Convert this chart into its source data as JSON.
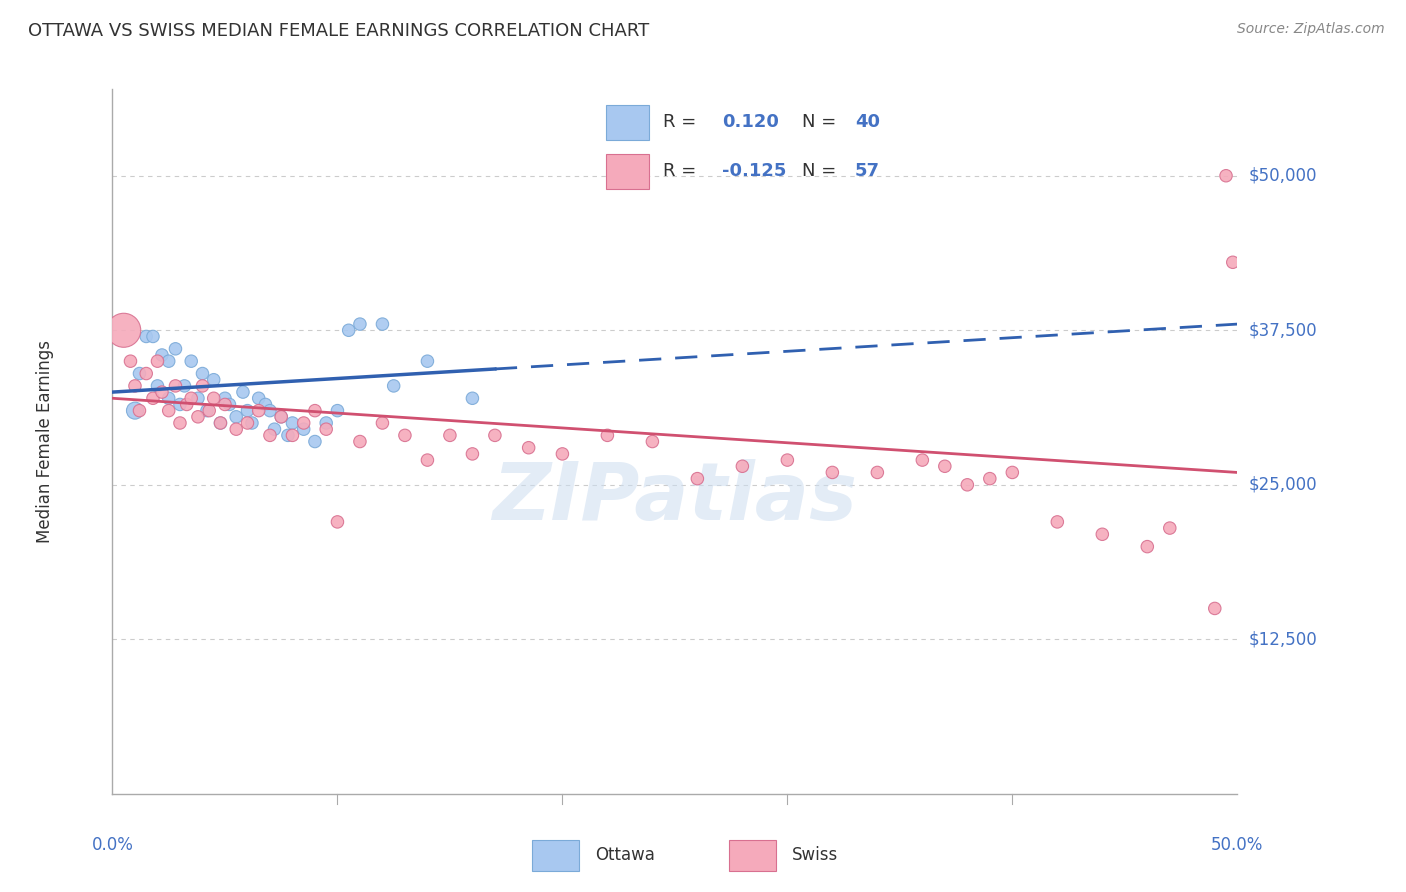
{
  "title": "OTTAWA VS SWISS MEDIAN FEMALE EARNINGS CORRELATION CHART",
  "source": "Source: ZipAtlas.com",
  "ylabel": "Median Female Earnings",
  "x_min": 0.0,
  "x_max": 0.5,
  "y_min": 0,
  "y_max": 57000,
  "ottawa_color": "#A8C8F0",
  "ottawa_edge_color": "#7BAAD8",
  "swiss_color": "#F5AABB",
  "swiss_edge_color": "#D87090",
  "trendline_ottawa_color": "#3060B0",
  "trendline_swiss_color": "#D05070",
  "y_ticks": [
    12500,
    25000,
    37500,
    50000
  ],
  "y_tick_labels": [
    "$12,500",
    "$25,000",
    "$37,500",
    "$50,000"
  ],
  "legend_r_ottawa": "0.120",
  "legend_r_swiss": "-0.125",
  "legend_n_ottawa": "40",
  "legend_n_swiss": "57",
  "watermark": "ZIPatlas",
  "background_color": "#FFFFFF",
  "grid_color": "#CCCCCC",
  "label_color": "#4472C4",
  "ottawa_x": [
    0.01,
    0.012,
    0.015,
    0.018,
    0.02,
    0.022,
    0.025,
    0.025,
    0.028,
    0.03,
    0.032,
    0.035,
    0.038,
    0.04,
    0.042,
    0.045,
    0.048,
    0.05,
    0.052,
    0.055,
    0.058,
    0.06,
    0.062,
    0.065,
    0.068,
    0.07,
    0.072,
    0.075,
    0.078,
    0.08,
    0.085,
    0.09,
    0.095,
    0.1,
    0.105,
    0.11,
    0.12,
    0.125,
    0.14,
    0.16
  ],
  "ottawa_y": [
    31000,
    34000,
    37000,
    37000,
    33000,
    35500,
    35000,
    32000,
    36000,
    31500,
    33000,
    35000,
    32000,
    34000,
    31000,
    33500,
    30000,
    32000,
    31500,
    30500,
    32500,
    31000,
    30000,
    32000,
    31500,
    31000,
    29500,
    30500,
    29000,
    30000,
    29500,
    28500,
    30000,
    31000,
    37500,
    38000,
    38000,
    33000,
    35000,
    32000
  ],
  "ottawa_sizes": [
    150,
    80,
    80,
    80,
    80,
    80,
    80,
    80,
    80,
    80,
    80,
    80,
    80,
    80,
    80,
    80,
    80,
    80,
    80,
    80,
    80,
    80,
    80,
    80,
    80,
    80,
    80,
    80,
    80,
    80,
    80,
    80,
    80,
    80,
    80,
    80,
    80,
    80,
    80,
    80
  ],
  "swiss_x": [
    0.005,
    0.008,
    0.01,
    0.012,
    0.015,
    0.018,
    0.02,
    0.022,
    0.025,
    0.028,
    0.03,
    0.033,
    0.035,
    0.038,
    0.04,
    0.043,
    0.045,
    0.048,
    0.05,
    0.055,
    0.06,
    0.065,
    0.07,
    0.075,
    0.08,
    0.085,
    0.09,
    0.095,
    0.1,
    0.11,
    0.12,
    0.13,
    0.14,
    0.15,
    0.16,
    0.17,
    0.185,
    0.2,
    0.22,
    0.24,
    0.26,
    0.28,
    0.3,
    0.32,
    0.34,
    0.36,
    0.37,
    0.38,
    0.39,
    0.4,
    0.42,
    0.44,
    0.46,
    0.47,
    0.49,
    0.495,
    0.498
  ],
  "swiss_y": [
    37500,
    35000,
    33000,
    31000,
    34000,
    32000,
    35000,
    32500,
    31000,
    33000,
    30000,
    31500,
    32000,
    30500,
    33000,
    31000,
    32000,
    30000,
    31500,
    29500,
    30000,
    31000,
    29000,
    30500,
    29000,
    30000,
    31000,
    29500,
    22000,
    28500,
    30000,
    29000,
    27000,
    29000,
    27500,
    29000,
    28000,
    27500,
    29000,
    28500,
    25500,
    26500,
    27000,
    26000,
    26000,
    27000,
    26500,
    25000,
    25500,
    26000,
    22000,
    21000,
    20000,
    21500,
    15000,
    50000,
    43000
  ],
  "swiss_sizes": [
    600,
    80,
    80,
    80,
    80,
    80,
    80,
    80,
    80,
    80,
    80,
    80,
    80,
    80,
    80,
    80,
    80,
    80,
    80,
    80,
    80,
    80,
    80,
    80,
    80,
    80,
    80,
    80,
    80,
    80,
    80,
    80,
    80,
    80,
    80,
    80,
    80,
    80,
    80,
    80,
    80,
    80,
    80,
    80,
    80,
    80,
    80,
    80,
    80,
    80,
    80,
    80,
    80,
    80,
    80,
    80,
    80
  ]
}
